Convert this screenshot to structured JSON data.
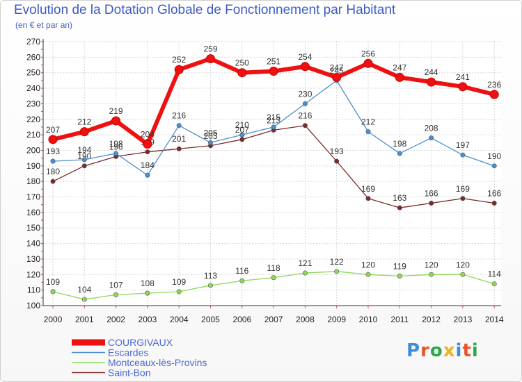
{
  "header": {
    "title": "Evolution de la Dotation Globale de Fonctionnement par Habitant",
    "subtitle": "(en € et par an)"
  },
  "logo": {
    "text": "Proxiti",
    "colors": [
      "#3a8fd8",
      "#e8552a",
      "#2aa84a",
      "#f0b020",
      "#3a8fd8",
      "#e8552a",
      "#2aa84a"
    ]
  },
  "chart_data": {
    "type": "line",
    "x": [
      2000,
      2001,
      2002,
      2003,
      2004,
      2005,
      2006,
      2007,
      2008,
      2009,
      2010,
      2011,
      2012,
      2013,
      2014
    ],
    "ylim": [
      100,
      270
    ],
    "yticks": [
      100,
      110,
      120,
      130,
      140,
      150,
      160,
      170,
      180,
      190,
      200,
      210,
      220,
      230,
      240,
      250,
      260,
      270
    ],
    "grid": true,
    "legend": "bottom-left",
    "series": [
      {
        "name": "Saint-Bon",
        "color": "#7a2a2a",
        "values": [
          180,
          190,
          196,
          199,
          201,
          203,
          207,
          213,
          216,
          193,
          169,
          163,
          166,
          169,
          166
        ]
      },
      {
        "name": "Escardes",
        "color": "#4a8fd0",
        "values": [
          193,
          194,
          198,
          184,
          216,
          205,
          210,
          215,
          230,
          245,
          212,
          198,
          208,
          197,
          190
        ]
      },
      {
        "name": "Montceaux-lès-Provins",
        "color": "#8ed858",
        "values": [
          109,
          104,
          107,
          108,
          109,
          113,
          116,
          118,
          121,
          122,
          120,
          119,
          120,
          120,
          114
        ]
      },
      {
        "name": "COURGIVAUX",
        "color": "#ee1111",
        "values": [
          207,
          212,
          219,
          204,
          252,
          259,
          250,
          251,
          254,
          247,
          256,
          247,
          244,
          241,
          236
        ]
      }
    ],
    "legend_order": [
      "COURGIVAUX",
      "Escardes",
      "Montceaux-lès-Provins",
      "Saint-Bon"
    ]
  }
}
